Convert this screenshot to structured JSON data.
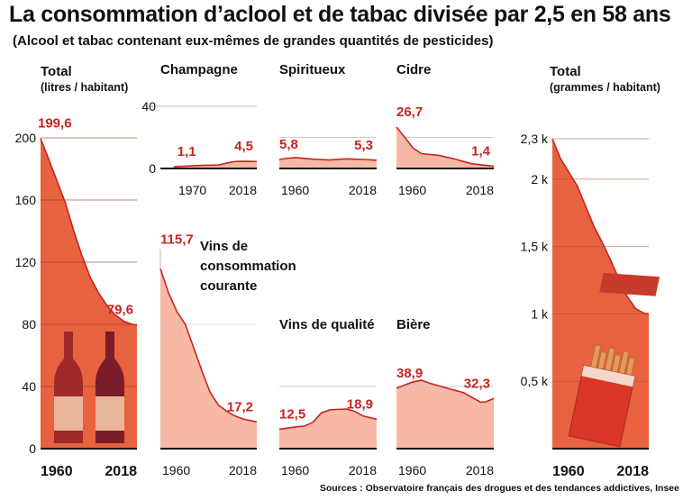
{
  "title": "La consommation d’aclool et de tabac divisée par 2,5 en 58 ans",
  "subtitle": "(Alcool et tabac contenant eux-mêmes de grandes quantités de pesticides)",
  "source": "Sources : Observatoire français des drogues et des tendances addictives, Insee",
  "colors": {
    "dark_fill": "#e8623f",
    "light_fill": "#f7b8a6",
    "line": "#c8231e",
    "label": "#c8231e"
  },
  "chart_data": [
    {
      "type": "area",
      "title": "Total",
      "subtitle": "(litres / habitant)",
      "yticks": [
        "0",
        "40",
        "80",
        "120",
        "160",
        "200"
      ],
      "ylim": [
        0,
        200
      ],
      "xlabels": [
        "1960",
        "2018"
      ],
      "x": [
        1960,
        1965,
        1970,
        1975,
        1980,
        1985,
        1990,
        1995,
        2000,
        2005,
        2010,
        2015,
        2018
      ],
      "y": [
        199.6,
        186,
        172,
        158,
        140,
        124,
        110,
        100,
        92,
        86,
        82,
        80,
        79.6
      ],
      "labels": [
        "199,6",
        "79,6"
      ],
      "icon": "wine-bottles-icon"
    },
    {
      "type": "area",
      "title": "Champagne",
      "yticks": [
        "0",
        "40"
      ],
      "ylim": [
        0,
        40
      ],
      "xlabels": [
        "1970",
        "2018"
      ],
      "x": [
        1968,
        1975,
        1985,
        1995,
        2000,
        2005,
        2010,
        2018
      ],
      "y": [
        1.1,
        1.5,
        2,
        2.2,
        3.5,
        4.5,
        4.6,
        4.5
      ],
      "labels": [
        "1,1",
        "4,5"
      ]
    },
    {
      "type": "area",
      "title": "Spiritueux",
      "xlabels": [
        "1960",
        "2018"
      ],
      "x": [
        1960,
        1965,
        1970,
        1980,
        1990,
        2000,
        2005,
        2010,
        2018
      ],
      "y": [
        5.8,
        6.6,
        7,
        6,
        5.5,
        6.2,
        6,
        5.8,
        5.3
      ],
      "labels": [
        "5,8",
        "5,3"
      ]
    },
    {
      "type": "area",
      "title": "Cidre",
      "xlabels": [
        "1960",
        "2018"
      ],
      "x": [
        1960,
        1965,
        1970,
        1975,
        1985,
        1995,
        2005,
        2018
      ],
      "y": [
        26.7,
        20,
        13,
        9.5,
        8.5,
        6,
        3,
        1.4
      ],
      "labels": [
        "26,7",
        "1,4"
      ]
    },
    {
      "type": "area",
      "title": "Vins de consommation courante",
      "xlabels": [
        "1960",
        "2018"
      ],
      "x": [
        1960,
        1965,
        1970,
        1975,
        1980,
        1985,
        1990,
        1995,
        2000,
        2005,
        2010,
        2018
      ],
      "y": [
        115.7,
        100,
        88,
        80,
        65,
        50,
        36,
        28,
        24,
        21,
        19,
        17.2
      ],
      "labels": [
        "115,7",
        "17,2"
      ]
    },
    {
      "type": "area",
      "title": "Vins de qualité",
      "xlabels": [
        "1960",
        "2018"
      ],
      "x": [
        1960,
        1970,
        1975,
        1980,
        1985,
        1990,
        2000,
        2005,
        2010,
        2018
      ],
      "y": [
        12.5,
        14,
        14.5,
        17,
        23,
        25,
        25.5,
        24,
        21,
        18.9
      ],
      "labels": [
        "12,5",
        "18,9"
      ]
    },
    {
      "type": "area",
      "title": "Bière",
      "xlabels": [
        "1960",
        "2018"
      ],
      "x": [
        1960,
        1965,
        1970,
        1975,
        1980,
        1990,
        2000,
        2005,
        2010,
        2013,
        2018
      ],
      "y": [
        38.9,
        41,
        43,
        44,
        42,
        39,
        36,
        33,
        30,
        30,
        32.3
      ],
      "labels": [
        "38,9",
        "32,3"
      ]
    },
    {
      "type": "area",
      "title": "Total",
      "subtitle": "(grammes / habitant)",
      "yticks": [
        "0,5 k",
        "1 k",
        "1,5 k",
        "2 k",
        "2,3 k"
      ],
      "ytick_values": [
        500,
        1000,
        1500,
        2000,
        2300
      ],
      "ylim": [
        0,
        2300
      ],
      "xlabels": [
        "1960",
        "2018"
      ],
      "x": [
        1960,
        1965,
        1970,
        1975,
        1980,
        1985,
        1990,
        1995,
        2000,
        2005,
        2010,
        2015,
        2018
      ],
      "y": [
        2300,
        2150,
        2050,
        1950,
        1800,
        1650,
        1530,
        1400,
        1260,
        1130,
        1040,
        1005,
        1000
      ],
      "icon": "cigarette-pack-icon"
    }
  ]
}
